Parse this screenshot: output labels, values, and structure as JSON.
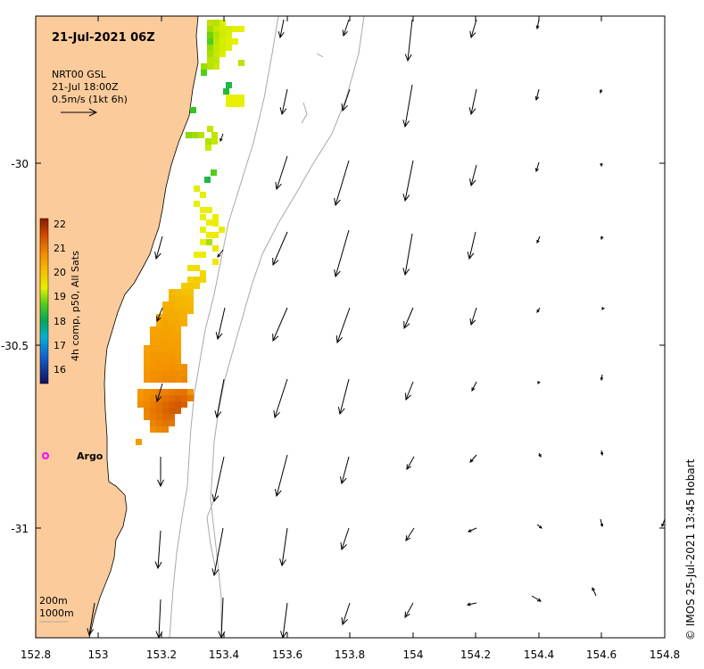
{
  "title": "21-Jul-2021 06Z",
  "current_legend": {
    "line1": "NRT00 GSL",
    "line2": "21-Jul 18:00Z",
    "line3": "0.5m/s (1kt 6h)"
  },
  "colorbar": {
    "label": "4h comp, p50, All Sats",
    "ticks": [
      "22",
      "21",
      "20",
      "19",
      "18",
      "17",
      "16"
    ]
  },
  "argo_label": "Argo",
  "depth_legend": {
    "line1": "200m",
    "line2": "1000m"
  },
  "credit": "©  IMOS 25-Jul-2021 13:45 Hobart",
  "x_ticks": [
    "152.8",
    "153",
    "153.2",
    "153.4",
    "153.6",
    "153.8",
    "154",
    "154.2",
    "154.4",
    "154.6",
    "154.8"
  ],
  "y_ticks": [
    "-30",
    "-30.5",
    "-31"
  ],
  "colors": {
    "land": "#fbcb9b",
    "contour": "#a8a8a8",
    "argo": "#ff00ff"
  }
}
